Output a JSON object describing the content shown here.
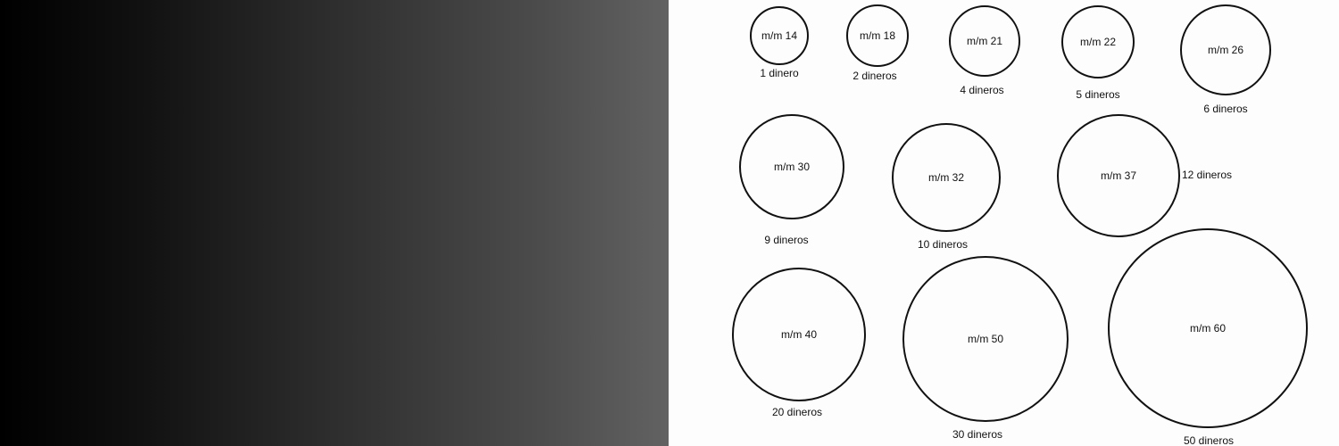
{
  "colors": {
    "gradient_start": "#000000",
    "gradient_end": "#636363",
    "ink": "#111111",
    "paper": "#fdfdfd"
  },
  "coins": [
    {
      "size_mm": 14,
      "size_label": "m/m 14",
      "value_label": "1 dinero"
    },
    {
      "size_mm": 18,
      "size_label": "m/m 18",
      "value_label": "2 dineros"
    },
    {
      "size_mm": 21,
      "size_label": "m/m 21",
      "value_label": "4 dineros"
    },
    {
      "size_mm": 22,
      "size_label": "m/m 22",
      "value_label": "5 dineros"
    },
    {
      "size_mm": 26,
      "size_label": "m/m 26",
      "value_label": "6 dineros"
    },
    {
      "size_mm": 30,
      "size_label": "m/m 30",
      "value_label": "9 dineros"
    },
    {
      "size_mm": 32,
      "size_label": "m/m 32",
      "value_label": "10 dineros"
    },
    {
      "size_mm": 37,
      "size_label": "m/m 37",
      "value_label": "12 dineros"
    },
    {
      "size_mm": 40,
      "size_label": "m/m 40",
      "value_label": "20 dineros"
    },
    {
      "size_mm": 50,
      "size_label": "m/m 50",
      "value_label": "30 dineros"
    },
    {
      "size_mm": 60,
      "size_label": "m/m 60",
      "value_label": "50 dineros"
    }
  ]
}
